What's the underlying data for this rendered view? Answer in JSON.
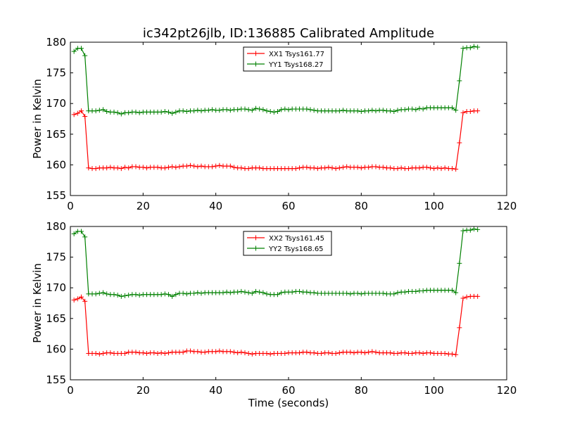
{
  "title": "ic342pt26jlb, ID:136885 Calibrated Amplitude",
  "chart_data": [
    {
      "type": "line",
      "ylabel": "Power in Kelvin",
      "xlabel": "",
      "xlim": [
        0,
        120
      ],
      "ylim": [
        155,
        180
      ],
      "xticks": [
        "0",
        "20",
        "40",
        "60",
        "80",
        "100",
        "120"
      ],
      "yticks": [
        "155",
        "160",
        "165",
        "170",
        "175",
        "180"
      ],
      "grid": false,
      "legend_position": "top-center",
      "x": [
        1,
        2,
        3,
        4,
        5,
        6,
        7,
        8,
        9,
        10,
        11,
        12,
        13,
        14,
        15,
        16,
        17,
        18,
        19,
        20,
        21,
        22,
        23,
        24,
        25,
        26,
        27,
        28,
        29,
        30,
        31,
        32,
        33,
        34,
        35,
        36,
        37,
        38,
        39,
        40,
        41,
        42,
        43,
        44,
        45,
        46,
        47,
        48,
        49,
        50,
        51,
        52,
        53,
        54,
        55,
        56,
        57,
        58,
        59,
        60,
        61,
        62,
        63,
        64,
        65,
        66,
        67,
        68,
        69,
        70,
        71,
        72,
        73,
        74,
        75,
        76,
        77,
        78,
        79,
        80,
        81,
        82,
        83,
        84,
        85,
        86,
        87,
        88,
        89,
        90,
        91,
        92,
        93,
        94,
        95,
        96,
        97,
        98,
        99,
        100,
        101,
        102,
        103,
        104,
        105,
        106,
        107,
        108,
        109,
        110,
        111,
        112
      ],
      "series": [
        {
          "name": "XX1 Tsys161.77",
          "color": "#ff0000",
          "values": [
            168.2,
            168.4,
            168.8,
            167.9,
            159.5,
            159.4,
            159.4,
            159.5,
            159.5,
            159.5,
            159.6,
            159.5,
            159.5,
            159.4,
            159.6,
            159.5,
            159.7,
            159.7,
            159.6,
            159.6,
            159.5,
            159.6,
            159.6,
            159.6,
            159.5,
            159.5,
            159.6,
            159.7,
            159.6,
            159.7,
            159.8,
            159.8,
            159.9,
            159.8,
            159.7,
            159.8,
            159.7,
            159.7,
            159.7,
            159.8,
            159.9,
            159.8,
            159.8,
            159.8,
            159.6,
            159.5,
            159.5,
            159.4,
            159.4,
            159.5,
            159.5,
            159.5,
            159.4,
            159.4,
            159.4,
            159.4,
            159.4,
            159.4,
            159.4,
            159.4,
            159.4,
            159.4,
            159.5,
            159.6,
            159.6,
            159.5,
            159.5,
            159.4,
            159.5,
            159.5,
            159.6,
            159.5,
            159.4,
            159.5,
            159.6,
            159.7,
            159.6,
            159.6,
            159.6,
            159.5,
            159.6,
            159.6,
            159.7,
            159.7,
            159.6,
            159.6,
            159.5,
            159.5,
            159.4,
            159.4,
            159.5,
            159.4,
            159.4,
            159.5,
            159.5,
            159.5,
            159.6,
            159.6,
            159.5,
            159.4,
            159.5,
            159.4,
            159.5,
            159.4,
            159.4,
            159.3,
            163.6,
            168.5,
            168.7,
            168.7,
            168.8,
            168.8
          ]
        },
        {
          "name": "YY1 Tsys168.27",
          "color": "#008000",
          "values": [
            178.5,
            179.0,
            179.0,
            177.8,
            168.8,
            168.8,
            168.8,
            168.9,
            169.0,
            168.7,
            168.6,
            168.6,
            168.5,
            168.3,
            168.5,
            168.5,
            168.6,
            168.6,
            168.5,
            168.6,
            168.6,
            168.6,
            168.6,
            168.6,
            168.6,
            168.7,
            168.6,
            168.4,
            168.6,
            168.8,
            168.8,
            168.7,
            168.8,
            168.8,
            168.9,
            168.8,
            168.9,
            168.9,
            169.0,
            168.9,
            168.9,
            169.0,
            169.0,
            168.9,
            169.0,
            169.0,
            169.1,
            169.1,
            169.0,
            168.9,
            169.2,
            169.1,
            169.0,
            168.8,
            168.7,
            168.6,
            168.7,
            169.0,
            169.1,
            169.0,
            169.1,
            169.1,
            169.1,
            169.1,
            169.1,
            169.0,
            168.9,
            168.8,
            168.8,
            168.8,
            168.8,
            168.8,
            168.8,
            168.8,
            168.9,
            168.8,
            168.8,
            168.8,
            168.8,
            168.7,
            168.8,
            168.8,
            168.9,
            168.8,
            168.9,
            168.9,
            168.8,
            168.8,
            168.7,
            168.9,
            169.0,
            169.0,
            169.1,
            169.1,
            169.0,
            169.2,
            169.1,
            169.3,
            169.3,
            169.3,
            169.3,
            169.3,
            169.3,
            169.3,
            169.3,
            168.9,
            173.7,
            179.0,
            179.1,
            179.1,
            179.3,
            179.2
          ]
        }
      ]
    },
    {
      "type": "line",
      "ylabel": "Power in Kelvin",
      "xlabel": "Time (seconds)",
      "xlim": [
        0,
        120
      ],
      "ylim": [
        155,
        180
      ],
      "xticks": [
        "0",
        "20",
        "40",
        "60",
        "80",
        "100",
        "120"
      ],
      "yticks": [
        "155",
        "160",
        "165",
        "170",
        "175",
        "180"
      ],
      "grid": false,
      "legend_position": "top-center",
      "x": [
        1,
        2,
        3,
        4,
        5,
        6,
        7,
        8,
        9,
        10,
        11,
        12,
        13,
        14,
        15,
        16,
        17,
        18,
        19,
        20,
        21,
        22,
        23,
        24,
        25,
        26,
        27,
        28,
        29,
        30,
        31,
        32,
        33,
        34,
        35,
        36,
        37,
        38,
        39,
        40,
        41,
        42,
        43,
        44,
        45,
        46,
        47,
        48,
        49,
        50,
        51,
        52,
        53,
        54,
        55,
        56,
        57,
        58,
        59,
        60,
        61,
        62,
        63,
        64,
        65,
        66,
        67,
        68,
        69,
        70,
        71,
        72,
        73,
        74,
        75,
        76,
        77,
        78,
        79,
        80,
        81,
        82,
        83,
        84,
        85,
        86,
        87,
        88,
        89,
        90,
        91,
        92,
        93,
        94,
        95,
        96,
        97,
        98,
        99,
        100,
        101,
        102,
        103,
        104,
        105,
        106,
        107,
        108,
        109,
        110,
        111,
        112
      ],
      "series": [
        {
          "name": "XX2 Tsys161.45",
          "color": "#ff0000",
          "values": [
            168.0,
            168.2,
            168.5,
            167.8,
            159.3,
            159.3,
            159.3,
            159.2,
            159.3,
            159.4,
            159.4,
            159.3,
            159.3,
            159.3,
            159.3,
            159.5,
            159.5,
            159.5,
            159.4,
            159.4,
            159.3,
            159.4,
            159.4,
            159.3,
            159.4,
            159.3,
            159.4,
            159.5,
            159.5,
            159.5,
            159.5,
            159.7,
            159.7,
            159.6,
            159.6,
            159.5,
            159.5,
            159.6,
            159.6,
            159.6,
            159.7,
            159.6,
            159.6,
            159.6,
            159.5,
            159.4,
            159.5,
            159.4,
            159.3,
            159.2,
            159.3,
            159.3,
            159.3,
            159.3,
            159.2,
            159.3,
            159.3,
            159.3,
            159.3,
            159.4,
            159.4,
            159.4,
            159.4,
            159.5,
            159.5,
            159.4,
            159.4,
            159.3,
            159.3,
            159.4,
            159.4,
            159.3,
            159.3,
            159.4,
            159.5,
            159.5,
            159.5,
            159.4,
            159.5,
            159.5,
            159.4,
            159.5,
            159.6,
            159.5,
            159.4,
            159.4,
            159.4,
            159.4,
            159.3,
            159.3,
            159.4,
            159.4,
            159.3,
            159.3,
            159.4,
            159.4,
            159.3,
            159.4,
            159.4,
            159.3,
            159.3,
            159.3,
            159.3,
            159.2,
            159.2,
            159.1,
            163.5,
            168.3,
            168.5,
            168.6,
            168.6,
            168.6
          ]
        },
        {
          "name": "YY2 Tsys168.65",
          "color": "#008000",
          "values": [
            178.8,
            179.2,
            179.2,
            178.3,
            169.0,
            169.0,
            169.0,
            169.1,
            169.2,
            169.0,
            168.9,
            168.9,
            168.8,
            168.6,
            168.7,
            168.8,
            168.9,
            168.9,
            168.8,
            168.9,
            168.9,
            168.9,
            168.9,
            168.9,
            168.9,
            169.0,
            168.9,
            168.6,
            168.9,
            169.1,
            169.1,
            169.0,
            169.1,
            169.1,
            169.2,
            169.1,
            169.2,
            169.2,
            169.2,
            169.2,
            169.2,
            169.2,
            169.3,
            169.2,
            169.3,
            169.3,
            169.4,
            169.3,
            169.2,
            169.1,
            169.4,
            169.3,
            169.2,
            169.0,
            168.9,
            168.9,
            168.9,
            169.2,
            169.3,
            169.3,
            169.3,
            169.4,
            169.4,
            169.3,
            169.3,
            169.2,
            169.2,
            169.1,
            169.1,
            169.1,
            169.1,
            169.1,
            169.1,
            169.1,
            169.1,
            169.1,
            169.0,
            169.1,
            169.1,
            169.0,
            169.1,
            169.1,
            169.1,
            169.1,
            169.1,
            169.1,
            169.0,
            169.0,
            169.0,
            169.2,
            169.3,
            169.3,
            169.4,
            169.4,
            169.4,
            169.5,
            169.5,
            169.6,
            169.6,
            169.6,
            169.6,
            169.6,
            169.6,
            169.6,
            169.6,
            169.2,
            174.0,
            179.3,
            179.4,
            179.4,
            179.6,
            179.5
          ]
        }
      ]
    }
  ]
}
